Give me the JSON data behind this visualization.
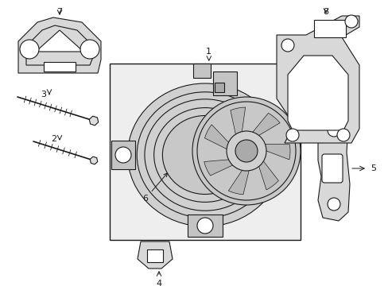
{
  "background_color": "#ffffff",
  "line_color": "#1a1a1a",
  "light_fill": "#f0f0f0",
  "figsize": [
    4.89,
    3.6
  ],
  "dpi": 100,
  "xlim": [
    0,
    489
  ],
  "ylim": [
    0,
    360
  ]
}
